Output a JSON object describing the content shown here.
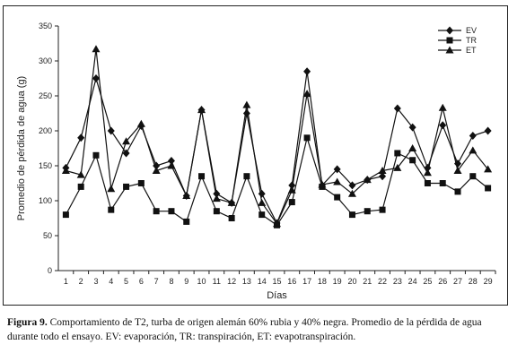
{
  "chart_data": {
    "type": "line",
    "xlabel": "Días",
    "ylabel": "Promedio de pérdida de agua (g)",
    "ylim": [
      0,
      350
    ],
    "yticks": [
      0,
      50,
      100,
      150,
      200,
      250,
      300,
      350
    ],
    "x": [
      1,
      2,
      3,
      4,
      5,
      6,
      7,
      8,
      9,
      10,
      11,
      12,
      13,
      14,
      15,
      16,
      17,
      18,
      19,
      20,
      21,
      22,
      23,
      24,
      25,
      26,
      27,
      28,
      29
    ],
    "grid": false,
    "legend_position": "top-right",
    "series": [
      {
        "name": "EV",
        "marker": "diamond",
        "values": [
          147,
          190,
          275,
          200,
          168,
          207,
          150,
          157,
          107,
          230,
          110,
          97,
          225,
          110,
          68,
          122,
          285,
          122,
          145,
          122,
          130,
          135,
          232,
          205,
          147,
          208,
          153,
          193,
          200
        ]
      },
      {
        "name": "TR",
        "marker": "square",
        "values": [
          80,
          120,
          165,
          87,
          120,
          125,
          85,
          85,
          70,
          135,
          85,
          75,
          135,
          80,
          65,
          98,
          190,
          120,
          105,
          80,
          85,
          87,
          168,
          158,
          125,
          125,
          113,
          135,
          118
        ]
      },
      {
        "name": "ET",
        "marker": "triangle",
        "values": [
          143,
          137,
          317,
          117,
          185,
          210,
          143,
          150,
          107,
          230,
          103,
          97,
          237,
          97,
          67,
          115,
          253,
          123,
          127,
          110,
          130,
          143,
          147,
          175,
          140,
          233,
          143,
          172,
          145
        ]
      }
    ]
  },
  "caption": {
    "label": "Figura 9.",
    "text": " Comportamiento de T2, turba de origen alemán 60% rubia y 40% negra. Promedio de la pérdida de agua durante todo el ensayo. EV: evaporación, TR: transpiración, ET: evapotranspiración."
  }
}
